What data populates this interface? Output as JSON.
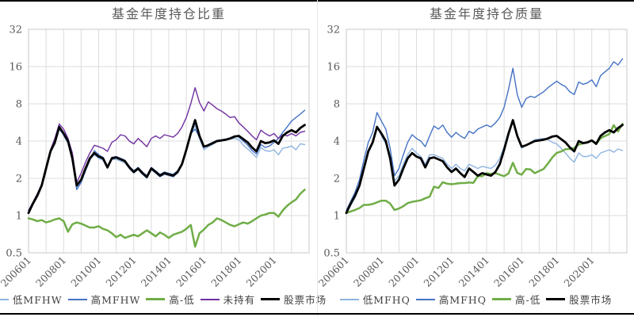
{
  "colors": {
    "light_blue": "#8EB4E2",
    "blue": "#4472C4",
    "green": "#70AD47",
    "purple": "#7030A0",
    "black": "#000000",
    "grid": "#DCDCDC",
    "plot_border": "#C8C8C8",
    "tick_text": "#595959"
  },
  "chart_data": [
    {
      "type": "line",
      "title": "基金年度持仓比重",
      "y_scale": "log2",
      "ylim": [
        0.5,
        32
      ],
      "y_ticks": [
        32,
        16,
        8,
        4,
        2,
        1,
        0.5
      ],
      "xlim": [
        2006,
        2022
      ],
      "x_gridline_interval_years": 1,
      "x_ticks": [
        2006,
        2008,
        2010,
        2012,
        2014,
        2016,
        2018,
        2020
      ],
      "x_tick_labels": [
        "200601",
        "200801",
        "201001",
        "201201",
        "201401",
        "201601",
        "201801",
        "202001"
      ],
      "grid": true,
      "legend_position": "bottom",
      "x_start": 2006.0,
      "x_step": 0.25,
      "series": [
        {
          "name": "低MFHW",
          "color": "#8EB4E2",
          "width": 1.4,
          "values": [
            1.05,
            1.22,
            1.42,
            1.7,
            2.3,
            3.2,
            3.85,
            5.3,
            4.4,
            3.85,
            2.8,
            1.7,
            1.9,
            2.35,
            2.85,
            3.1,
            2.9,
            2.8,
            2.4,
            2.85,
            2.85,
            2.75,
            2.65,
            2.4,
            2.2,
            2.35,
            2.15,
            2.0,
            2.35,
            2.2,
            2.05,
            2.15,
            2.1,
            2.05,
            2.2,
            2.55,
            3.3,
            4.5,
            5.4,
            4.2,
            3.4,
            3.6,
            3.75,
            3.95,
            4.0,
            4.1,
            4.15,
            4.2,
            4.1,
            3.7,
            3.45,
            3.2,
            2.95,
            3.55,
            3.35,
            3.3,
            3.4,
            3.1,
            3.5,
            3.55,
            3.65,
            3.4,
            3.8,
            3.75
          ]
        },
        {
          "name": "高MFHW",
          "color": "#4472C4",
          "width": 1.4,
          "values": [
            1.1,
            1.25,
            1.45,
            1.75,
            2.35,
            3.25,
            3.8,
            5.0,
            4.5,
            3.9,
            2.85,
            1.62,
            1.85,
            2.3,
            2.8,
            3.35,
            3.1,
            2.95,
            2.5,
            2.95,
            3.0,
            2.9,
            2.8,
            2.5,
            2.3,
            2.45,
            2.25,
            2.1,
            2.45,
            2.3,
            2.15,
            2.25,
            2.2,
            2.15,
            2.3,
            2.65,
            3.45,
            4.6,
            5.0,
            4.3,
            3.55,
            3.75,
            3.9,
            4.05,
            4.1,
            4.15,
            4.25,
            4.4,
            4.3,
            4.0,
            3.7,
            3.35,
            3.15,
            3.75,
            3.55,
            3.65,
            3.9,
            4.2,
            4.7,
            5.2,
            5.8,
            6.2,
            6.6,
            7.1
          ]
        },
        {
          "name": "高-低",
          "color": "#70AD47",
          "width": 2.5,
          "values": [
            0.95,
            0.93,
            0.9,
            0.92,
            0.88,
            0.9,
            0.93,
            0.95,
            0.9,
            0.74,
            0.85,
            0.88,
            0.86,
            0.83,
            0.8,
            0.8,
            0.82,
            0.78,
            0.76,
            0.72,
            0.67,
            0.7,
            0.66,
            0.68,
            0.7,
            0.68,
            0.72,
            0.76,
            0.72,
            0.68,
            0.73,
            0.7,
            0.66,
            0.7,
            0.72,
            0.74,
            0.78,
            0.84,
            0.56,
            0.72,
            0.77,
            0.84,
            0.88,
            0.95,
            0.92,
            0.88,
            0.84,
            0.82,
            0.85,
            0.88,
            0.86,
            0.9,
            0.95,
            1.0,
            1.02,
            1.05,
            1.05,
            0.98,
            1.1,
            1.2,
            1.28,
            1.35,
            1.5,
            1.62
          ]
        },
        {
          "name": "未持有",
          "color": "#7030A0",
          "width": 1.4,
          "values": [
            1.1,
            1.28,
            1.5,
            1.8,
            2.5,
            3.4,
            4.2,
            5.5,
            5.0,
            4.2,
            3.2,
            1.85,
            2.2,
            2.7,
            3.2,
            3.7,
            3.6,
            3.5,
            3.3,
            3.9,
            4.1,
            4.5,
            4.4,
            4.0,
            3.8,
            4.2,
            3.9,
            3.6,
            4.2,
            4.4,
            4.2,
            4.5,
            4.4,
            4.3,
            4.6,
            5.2,
            6.2,
            8.0,
            10.8,
            8.2,
            7.0,
            8.3,
            7.8,
            7.3,
            7.0,
            6.6,
            6.2,
            6.3,
            5.6,
            5.2,
            4.8,
            4.4,
            4.1,
            4.9,
            4.6,
            4.4,
            4.6,
            4.2,
            4.5,
            4.4,
            4.6,
            4.4,
            4.7,
            4.8
          ]
        },
        {
          "name": "股票市场",
          "color": "#000000",
          "width": 2.8,
          "values": [
            1.05,
            1.25,
            1.45,
            1.75,
            2.4,
            3.3,
            3.9,
            5.2,
            4.6,
            4.0,
            2.9,
            1.75,
            1.95,
            2.4,
            2.9,
            3.2,
            3.0,
            2.9,
            2.45,
            2.9,
            2.95,
            2.85,
            2.75,
            2.45,
            2.25,
            2.4,
            2.2,
            2.05,
            2.4,
            2.25,
            2.1,
            2.2,
            2.15,
            2.1,
            2.25,
            2.6,
            3.4,
            4.6,
            5.9,
            4.4,
            3.6,
            3.7,
            3.85,
            4.0,
            4.05,
            4.1,
            4.2,
            4.35,
            4.4,
            4.15,
            3.9,
            3.55,
            3.3,
            4.0,
            3.85,
            3.9,
            4.05,
            3.8,
            4.4,
            4.7,
            4.9,
            4.7,
            5.1,
            5.4
          ]
        }
      ]
    },
    {
      "type": "line",
      "title": "基金年度持仓质量",
      "y_scale": "log2",
      "ylim": [
        0.5,
        32
      ],
      "y_ticks": [
        32,
        16,
        8,
        4,
        2,
        1,
        0.5
      ],
      "xlim": [
        2006,
        2022
      ],
      "x_gridline_interval_years": 1,
      "x_ticks": [
        2006,
        2008,
        2010,
        2012,
        2014,
        2016,
        2018,
        2020
      ],
      "x_tick_labels": [
        "200601",
        "200801",
        "201001",
        "201201",
        "201401",
        "201601",
        "201801",
        "202001"
      ],
      "grid": true,
      "legend_position": "bottom",
      "x_start": 2006.0,
      "x_step": 0.25,
      "series": [
        {
          "name": "低MFHQ",
          "color": "#8EB4E2",
          "width": 1.4,
          "values": [
            1.05,
            1.2,
            1.4,
            1.7,
            2.3,
            3.2,
            3.8,
            5.3,
            4.4,
            3.8,
            2.8,
            1.9,
            2.1,
            2.6,
            3.1,
            3.5,
            3.2,
            3.0,
            2.6,
            3.1,
            3.1,
            3.0,
            2.9,
            2.6,
            2.4,
            2.6,
            2.4,
            2.3,
            2.6,
            2.5,
            2.4,
            2.5,
            2.45,
            2.4,
            2.55,
            2.9,
            3.6,
            4.8,
            5.8,
            4.3,
            3.5,
            3.7,
            3.9,
            4.1,
            4.15,
            4.2,
            4.1,
            3.9,
            3.8,
            3.5,
            3.2,
            2.9,
            2.7,
            3.2,
            3.0,
            3.0,
            3.1,
            2.9,
            3.2,
            3.3,
            3.4,
            3.25,
            3.45,
            3.35
          ]
        },
        {
          "name": "高MFHQ",
          "color": "#4472C4",
          "width": 1.4,
          "values": [
            1.1,
            1.3,
            1.55,
            1.95,
            2.8,
            3.9,
            4.7,
            6.8,
            5.8,
            5.0,
            3.5,
            2.1,
            2.4,
            3.1,
            3.9,
            4.5,
            4.2,
            4.0,
            3.6,
            4.4,
            5.3,
            5.0,
            5.4,
            4.7,
            4.3,
            4.7,
            4.4,
            4.2,
            4.8,
            4.6,
            5.0,
            5.2,
            5.4,
            5.2,
            5.6,
            6.2,
            7.5,
            10.5,
            15.5,
            9.5,
            7.5,
            8.8,
            9.2,
            9.0,
            9.5,
            10.0,
            10.8,
            11.5,
            12.2,
            11.5,
            11.0,
            10.0,
            9.5,
            12.0,
            11.5,
            11.8,
            12.5,
            11.0,
            13.5,
            14.5,
            15.5,
            17.5,
            16.5,
            18.5
          ]
        },
        {
          "name": "高-低",
          "color": "#70AD47",
          "width": 2.5,
          "values": [
            1.05,
            1.08,
            1.11,
            1.15,
            1.22,
            1.22,
            1.24,
            1.28,
            1.32,
            1.32,
            1.25,
            1.11,
            1.14,
            1.19,
            1.26,
            1.29,
            1.31,
            1.33,
            1.38,
            1.42,
            1.71,
            1.67,
            1.86,
            1.81,
            1.79,
            1.81,
            1.83,
            1.83,
            1.85,
            1.84,
            2.08,
            2.08,
            2.2,
            2.17,
            2.2,
            2.14,
            2.08,
            2.19,
            2.67,
            2.21,
            2.14,
            2.38,
            2.36,
            2.2,
            2.29,
            2.38,
            2.63,
            2.95,
            3.21,
            3.29,
            3.44,
            3.45,
            3.52,
            3.75,
            3.83,
            3.93,
            4.03,
            3.79,
            4.22,
            4.39,
            4.56,
            5.38,
            4.78,
            5.52
          ]
        },
        {
          "name": "股票市场",
          "color": "#000000",
          "width": 2.8,
          "values": [
            1.05,
            1.25,
            1.45,
            1.75,
            2.4,
            3.3,
            3.9,
            5.2,
            4.6,
            4.0,
            2.9,
            1.75,
            1.95,
            2.4,
            2.9,
            3.2,
            3.0,
            2.9,
            2.45,
            2.9,
            2.95,
            2.85,
            2.75,
            2.45,
            2.25,
            2.4,
            2.2,
            2.05,
            2.4,
            2.25,
            2.1,
            2.2,
            2.15,
            2.1,
            2.25,
            2.6,
            3.4,
            4.6,
            5.9,
            4.4,
            3.6,
            3.7,
            3.85,
            4.0,
            4.05,
            4.1,
            4.2,
            4.35,
            4.4,
            4.15,
            3.9,
            3.55,
            3.3,
            4.0,
            3.85,
            3.9,
            4.05,
            3.8,
            4.4,
            4.7,
            4.9,
            4.7,
            5.1,
            5.4
          ]
        }
      ]
    }
  ]
}
